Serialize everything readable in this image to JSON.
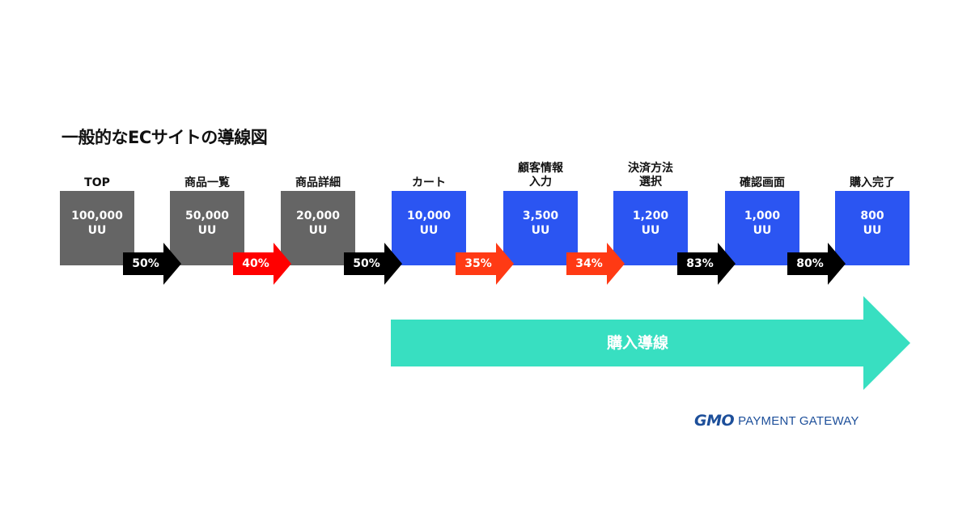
{
  "title": "一般的なECサイトの導線図",
  "stages": [
    {
      "label": "TOP",
      "value": "100,000",
      "unit": "UU",
      "color": "gray"
    },
    {
      "label": "商品一覧",
      "value": "50,000",
      "unit": "UU",
      "color": "gray"
    },
    {
      "label": "商品詳細",
      "value": "20,000",
      "unit": "UU",
      "color": "gray"
    },
    {
      "label": "カート",
      "value": "10,000",
      "unit": "UU",
      "color": "blue"
    },
    {
      "label": "顧客情報\n入力",
      "value": "3,500",
      "unit": "UU",
      "color": "blue"
    },
    {
      "label": "決済方法\n選択",
      "value": "1,200",
      "unit": "UU",
      "color": "blue"
    },
    {
      "label": "確認画面",
      "value": "1,000",
      "unit": "UU",
      "color": "blue"
    },
    {
      "label": "購入完了",
      "value": "800",
      "unit": "UU",
      "color": "blue"
    }
  ],
  "conversions": [
    {
      "rate": "50%",
      "color": "black"
    },
    {
      "rate": "40%",
      "color": "red"
    },
    {
      "rate": "50%",
      "color": "black"
    },
    {
      "rate": "35%",
      "color": "orange-red"
    },
    {
      "rate": "34%",
      "color": "orange-red"
    },
    {
      "rate": "83%",
      "color": "black"
    },
    {
      "rate": "80%",
      "color": "black"
    }
  ],
  "purchase_flow_label": "購入導線",
  "logo": {
    "brand": "GMO",
    "text": "PAYMENT GATEWAY"
  },
  "colors": {
    "gray_box": "#656565",
    "blue_box": "#2b55f2",
    "black_arrow": "#000000",
    "red_arrow": "#ff0000",
    "orange_red_arrow": "#ff3a14",
    "purchase_arrow": "#38dfc1",
    "logo": "#1d4f9a"
  }
}
